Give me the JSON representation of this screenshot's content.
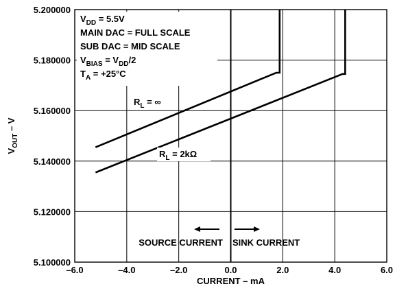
{
  "chart_data": {
    "type": "line",
    "xlabel": "CURRENT – mA",
    "ylabel_main": "V",
    "ylabel_sub": "OUT",
    "ylabel_tail": " – V",
    "xlim": [
      -6.0,
      6.0
    ],
    "ylim": [
      5.1,
      5.2
    ],
    "grid": true,
    "x_ticks": [
      -6.0,
      -4.0,
      -2.0,
      0.0,
      2.0,
      4.0,
      6.0
    ],
    "x_tick_labels": [
      "–6.0",
      "–4.0",
      "–2.0",
      "0.0",
      "2.0",
      "4.0",
      "6.0"
    ],
    "y_ticks": [
      5.1,
      5.12,
      5.14,
      5.16,
      5.18,
      5.2
    ],
    "y_tick_labels": [
      "5.100000",
      "5.120000",
      "5.140000",
      "5.160000",
      "5.180000",
      "5.200000"
    ],
    "conditions": [
      {
        "main": "V",
        "sub": "DD",
        "tail": " = 5.5V"
      },
      {
        "main": "MAIN DAC = FULL SCALE",
        "sub": "",
        "tail": ""
      },
      {
        "main": "SUB DAC = MID SCALE",
        "sub": "",
        "tail": ""
      },
      {
        "main": "V",
        "sub": "BIAS",
        "tail": " = V",
        "sub2": "DD",
        "tail2": "/2"
      },
      {
        "main": "T",
        "sub": "A",
        "tail": " = +25°C"
      }
    ],
    "series": [
      {
        "label_main": "R",
        "label_sub": "L",
        "label_tail": " = ∞",
        "x": [
          -5.2,
          1.75,
          1.88,
          1.88
        ],
        "y": [
          5.1455,
          5.175,
          5.175,
          5.2
        ]
      },
      {
        "label_main": "R",
        "label_sub": "L",
        "label_tail": " = 2kΩ",
        "x": [
          -5.2,
          4.3,
          4.4,
          4.4
        ],
        "y": [
          5.1355,
          5.1745,
          5.1745,
          5.2
        ]
      }
    ],
    "annotations": {
      "source_label": "SOURCE CURRENT",
      "sink_label": "SINK CURRENT"
    }
  }
}
